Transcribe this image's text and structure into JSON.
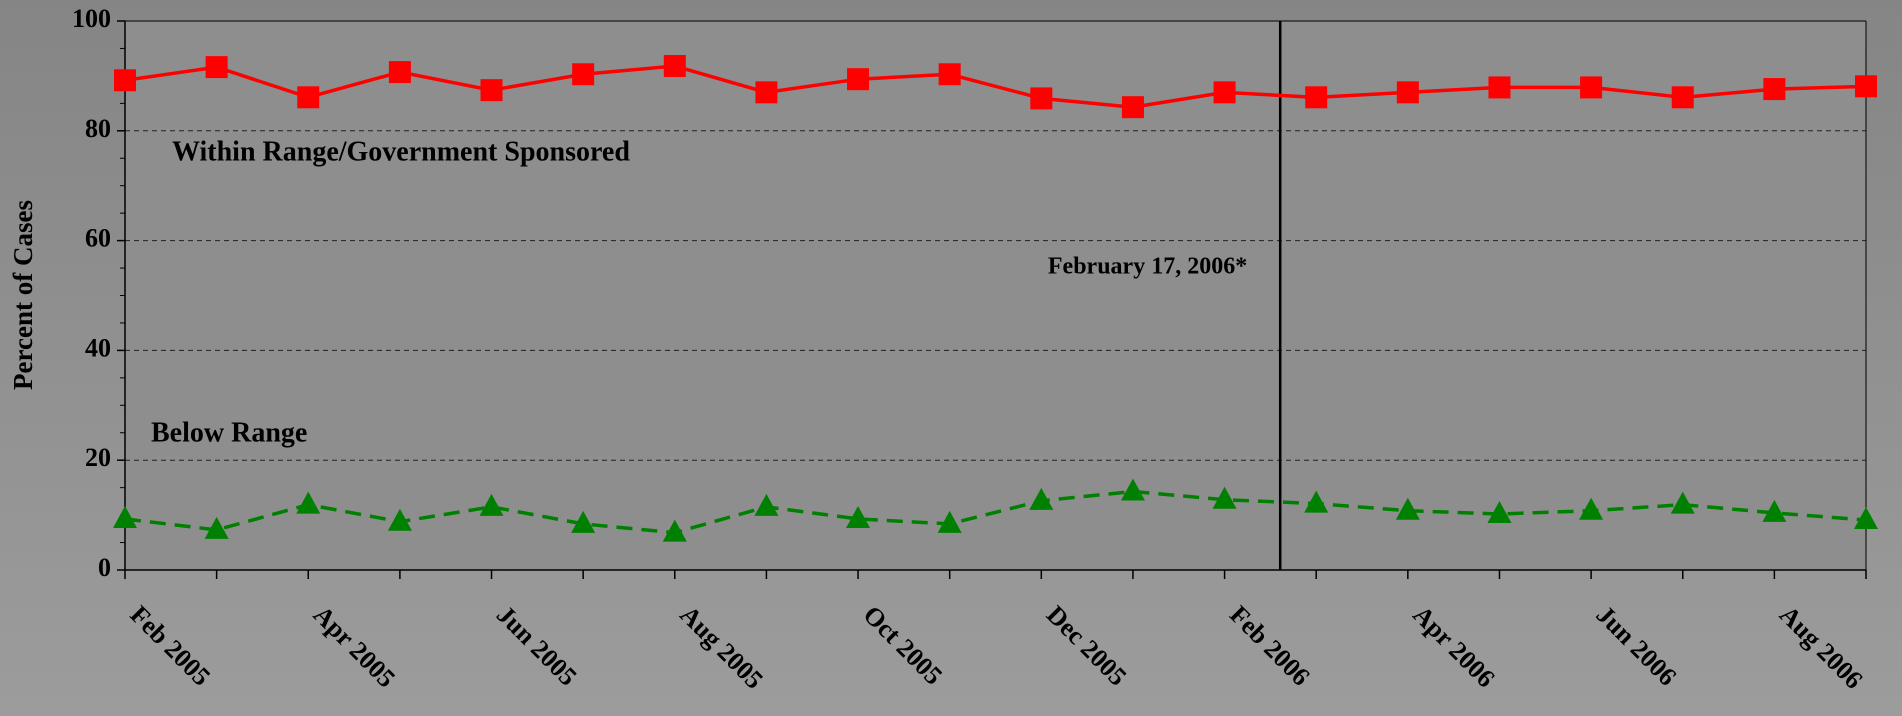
{
  "chart_data": {
    "type": "line",
    "ylabel": "Percent of Cases",
    "categories": [
      "Feb 2005",
      null,
      "Apr 2005",
      null,
      "Jun 2005",
      null,
      "Aug 2005",
      null,
      "Oct 2005",
      null,
      "Dec 2005",
      null,
      "Feb 2006",
      null,
      "Apr 2006",
      null,
      "Jun 2006",
      null,
      "Aug 2006",
      null
    ],
    "series": [
      {
        "name": "Within Range/Government Sponsored",
        "color": "#ff0000",
        "marker": "square",
        "dash": false,
        "values": [
          89.2,
          91.6,
          86.1,
          90.7,
          87.4,
          90.3,
          91.8,
          87.0,
          89.4,
          90.3,
          85.9,
          84.3,
          87.0,
          86.1,
          87.0,
          87.9,
          87.9,
          86.1,
          87.6,
          88.1
        ]
      },
      {
        "name": "Below Range",
        "color": "#008000",
        "marker": "triangle",
        "dash": true,
        "values": [
          9.3,
          7.3,
          11.9,
          8.8,
          11.5,
          8.4,
          6.8,
          11.5,
          9.3,
          8.4,
          12.6,
          14.3,
          12.8,
          12.1,
          10.8,
          10.2,
          10.8,
          11.9,
          10.4,
          9.1
        ]
      }
    ],
    "annotation": "February 17, 2006*",
    "ylim": [
      0,
      100
    ],
    "yticks": [
      0,
      20,
      40,
      60,
      80,
      100
    ],
    "grid": true
  }
}
